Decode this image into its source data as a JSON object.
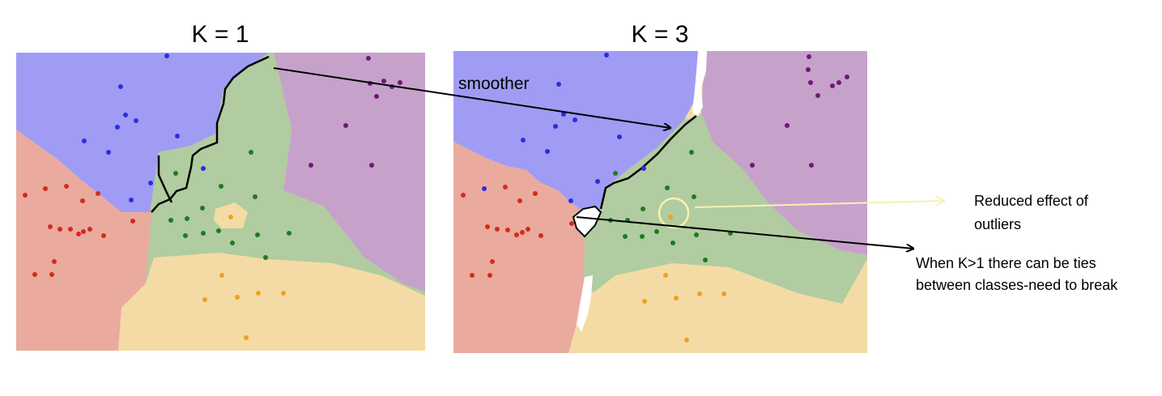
{
  "panels": [
    {
      "title": "K = 1"
    },
    {
      "title": "K = 3"
    }
  ],
  "annotations": {
    "smoother": "smoother",
    "outliers_line1": "Reduced effect of",
    "outliers_line2": "outliers",
    "ties_line1": "When K>1 there can be ties",
    "ties_line2": "between classes-need to break"
  },
  "colors": {
    "blue_region": "#a09cf4",
    "purple_region": "#c6a2cb",
    "green_region": "#b1cca0",
    "red_region": "#eaab9e",
    "orange_region": "#f4dba5",
    "blue_point": "#2a2ee0",
    "purple_point": "#701878",
    "green_point": "#1f7a22",
    "red_point": "#d42b1e",
    "orange_point": "#f0a020",
    "highlight_circle": "#f6f2b0"
  }
}
